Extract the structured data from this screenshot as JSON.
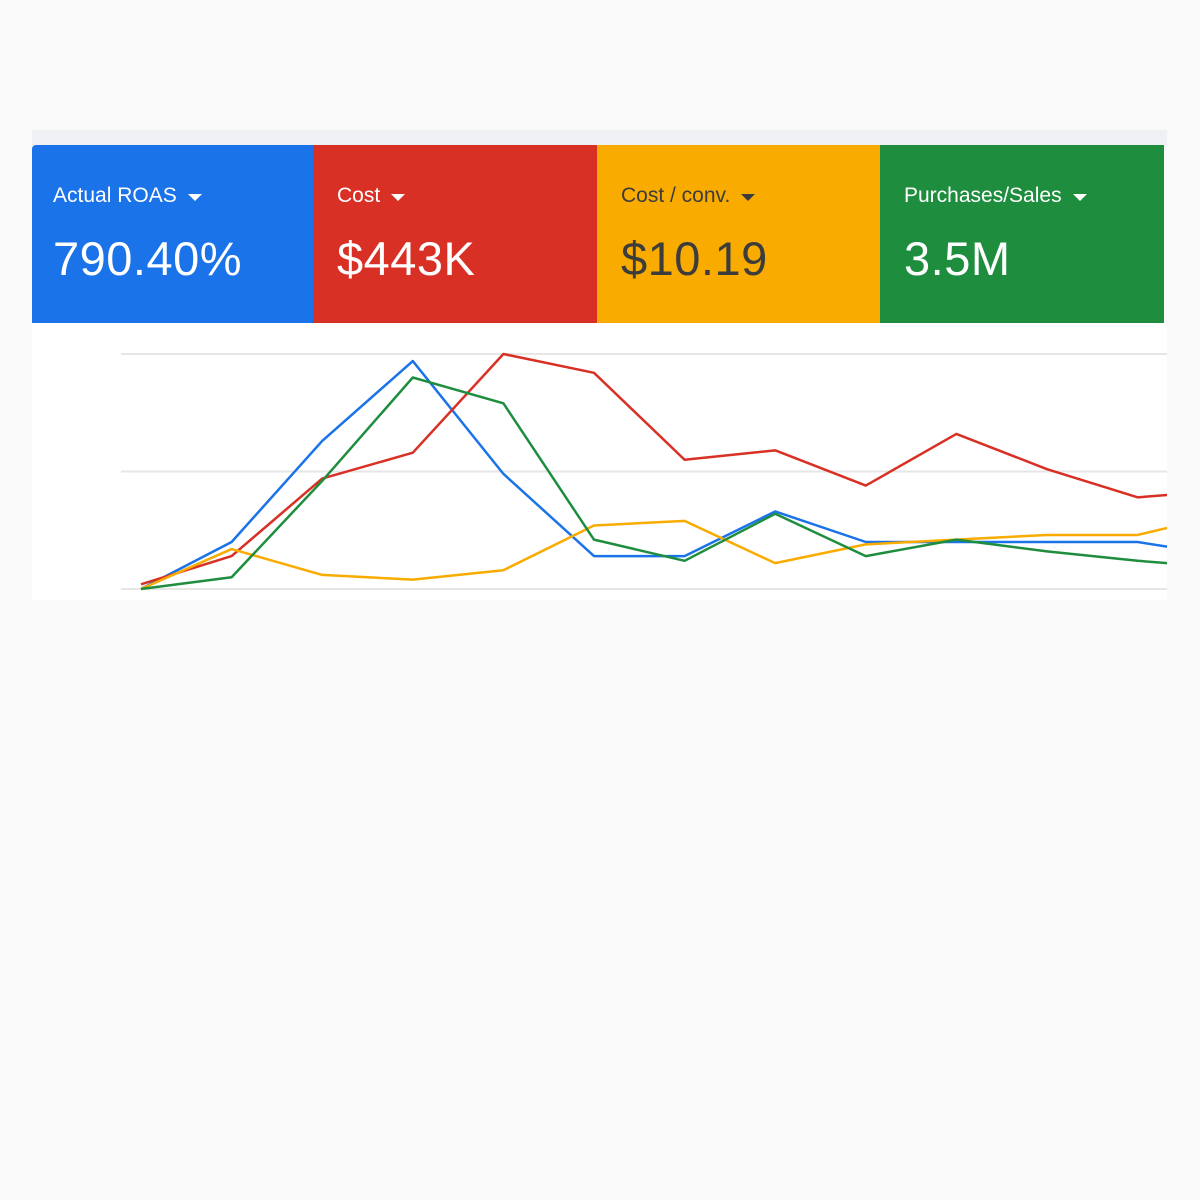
{
  "scorecards": [
    {
      "label": "Actual ROAS",
      "value": "790.40%",
      "color": "#1a73e8"
    },
    {
      "label": "Cost",
      "value": "$443K",
      "color": "#d93025"
    },
    {
      "label": "Cost / conv.",
      "value": "$10.19",
      "color": "#f9ab00"
    },
    {
      "label": "Purchases/Sales",
      "value": "3.5M",
      "color": "#1e8e3e"
    }
  ],
  "chart_data": {
    "type": "line",
    "title": "",
    "xlabel": "",
    "ylabel": "",
    "note": "values normalized 0-100 relative to chart height; no axis labels shown",
    "x": [
      0,
      1,
      2,
      3,
      4,
      5,
      6,
      7,
      8,
      9,
      10,
      11,
      11.33
    ],
    "ylim": [
      0,
      100
    ],
    "grid": true,
    "series": [
      {
        "name": "Actual ROAS",
        "color": "#1a73e8",
        "values": [
          0,
          20,
          63,
          97,
          49,
          14,
          14,
          33,
          20,
          20,
          20,
          20,
          18
        ]
      },
      {
        "name": "Cost",
        "color": "#d93025",
        "values": [
          2,
          14,
          47,
          58,
          100,
          92,
          55,
          59,
          44,
          66,
          51,
          39,
          40
        ]
      },
      {
        "name": "Cost / conv.",
        "color": "#f9ab00",
        "values": [
          0,
          17,
          6,
          4,
          8,
          27,
          29,
          11,
          19,
          21,
          23,
          23,
          26
        ]
      },
      {
        "name": "Purchases/Sales",
        "color": "#1e8e3e",
        "values": [
          0,
          5,
          46,
          90,
          79,
          21,
          12,
          32,
          14,
          21,
          16,
          12,
          11
        ]
      }
    ]
  }
}
